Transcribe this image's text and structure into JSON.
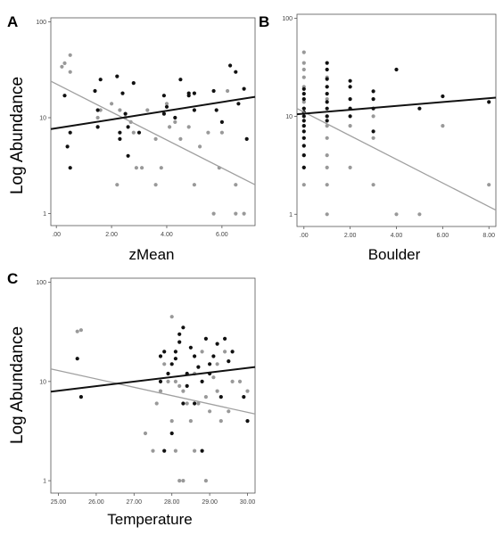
{
  "figure": {
    "shared_ylabel": "Log Abundance"
  },
  "chart_data": [
    {
      "type": "scatter",
      "panel": "A",
      "xlabel": "zMean",
      "ylabel": "Log Abundance",
      "yscale": "log",
      "xlim": [
        -0.2,
        7.2
      ],
      "ylim": [
        0.75,
        110
      ],
      "x_ticks": [
        0,
        2,
        4,
        6
      ],
      "x_tick_labels": [
        ".00",
        "2.00",
        "4.00",
        "6.00"
      ],
      "y_ticks": [
        1,
        10,
        100
      ],
      "y_tick_labels": [
        "1",
        "10",
        "100"
      ],
      "grid": false,
      "legend": "none",
      "colors": {
        "black_series": "#111111",
        "gray_series": "#999999"
      },
      "series": [
        {
          "color": "black",
          "points": [
            [
              0.3,
              17
            ],
            [
              0.4,
              5
            ],
            [
              0.5,
              3
            ],
            [
              0.5,
              7
            ],
            [
              1.4,
              19
            ],
            [
              1.5,
              12
            ],
            [
              1.6,
              25
            ],
            [
              1.5,
              8
            ],
            [
              2.2,
              27
            ],
            [
              2.3,
              7
            ],
            [
              2.3,
              6
            ],
            [
              2.4,
              18
            ],
            [
              2.5,
              11
            ],
            [
              2.6,
              4
            ],
            [
              2.6,
              8
            ],
            [
              2.8,
              23
            ],
            [
              3.0,
              7
            ],
            [
              3.9,
              17
            ],
            [
              3.9,
              11
            ],
            [
              4.0,
              13
            ],
            [
              4.3,
              10
            ],
            [
              4.5,
              25
            ],
            [
              4.8,
              18
            ],
            [
              4.8,
              17
            ],
            [
              5.0,
              18
            ],
            [
              5.0,
              12
            ],
            [
              5.7,
              19
            ],
            [
              5.8,
              12
            ],
            [
              6.0,
              9
            ],
            [
              6.3,
              35
            ],
            [
              6.5,
              30
            ],
            [
              6.6,
              14
            ],
            [
              6.8,
              20
            ],
            [
              6.9,
              6
            ]
          ],
          "fit": [
            [
              -0.2,
              7.6
            ],
            [
              7.2,
              16.5
            ]
          ]
        },
        {
          "color": "gray",
          "points": [
            [
              0.2,
              34
            ],
            [
              0.3,
              37
            ],
            [
              0.5,
              45
            ],
            [
              0.5,
              30
            ],
            [
              1.5,
              10
            ],
            [
              1.5,
              8
            ],
            [
              1.6,
              12
            ],
            [
              2.0,
              14
            ],
            [
              2.2,
              2
            ],
            [
              2.3,
              12
            ],
            [
              2.5,
              10
            ],
            [
              2.7,
              9
            ],
            [
              2.8,
              7
            ],
            [
              2.9,
              3
            ],
            [
              3.1,
              3
            ],
            [
              3.3,
              12
            ],
            [
              3.6,
              6
            ],
            [
              3.6,
              2
            ],
            [
              3.8,
              3
            ],
            [
              4.0,
              14
            ],
            [
              4.1,
              8
            ],
            [
              4.3,
              9
            ],
            [
              4.5,
              6
            ],
            [
              4.8,
              8
            ],
            [
              5.0,
              2
            ],
            [
              5.2,
              5
            ],
            [
              5.5,
              7
            ],
            [
              5.7,
              1
            ],
            [
              5.9,
              3
            ],
            [
              6.0,
              7
            ],
            [
              6.2,
              19
            ],
            [
              6.5,
              2
            ],
            [
              6.5,
              1
            ],
            [
              6.8,
              1
            ]
          ],
          "fit": [
            [
              -0.2,
              24
            ],
            [
              7.2,
              2.0
            ]
          ]
        }
      ]
    },
    {
      "type": "scatter",
      "panel": "B",
      "xlabel": "Boulder",
      "yscale": "log",
      "xlim": [
        -0.3,
        8.3
      ],
      "ylim": [
        0.75,
        110
      ],
      "x_ticks": [
        0,
        2,
        4,
        6,
        8
      ],
      "x_tick_labels": [
        ".00",
        "2.00",
        "4.00",
        "6.00",
        "8.00"
      ],
      "y_ticks": [
        1,
        10,
        100
      ],
      "y_tick_labels": [
        "1",
        "10",
        "100"
      ],
      "grid": false,
      "legend": "none",
      "series": [
        {
          "color": "black",
          "points": [
            [
              0,
              3
            ],
            [
              0,
              4
            ],
            [
              0,
              5
            ],
            [
              0,
              6
            ],
            [
              0,
              7
            ],
            [
              0,
              8
            ],
            [
              0,
              9
            ],
            [
              0,
              10
            ],
            [
              0,
              11
            ],
            [
              0,
              12
            ],
            [
              0,
              15
            ],
            [
              0,
              17
            ],
            [
              0,
              19
            ],
            [
              1,
              9
            ],
            [
              1,
              10
            ],
            [
              1,
              12
            ],
            [
              1,
              14
            ],
            [
              1,
              17
            ],
            [
              1,
              20
            ],
            [
              1,
              24
            ],
            [
              1,
              30
            ],
            [
              1,
              35
            ],
            [
              2,
              10
            ],
            [
              2,
              12
            ],
            [
              2,
              15
            ],
            [
              2,
              20
            ],
            [
              2,
              23
            ],
            [
              3,
              7
            ],
            [
              3,
              12
            ],
            [
              3,
              15
            ],
            [
              3,
              18
            ],
            [
              4,
              30
            ],
            [
              5,
              12
            ],
            [
              6,
              16
            ],
            [
              8,
              14
            ]
          ],
          "fit": [
            [
              -0.3,
              10.5
            ],
            [
              8.3,
              15.5
            ]
          ]
        },
        {
          "color": "gray",
          "points": [
            [
              0,
              2
            ],
            [
              0,
              3
            ],
            [
              0,
              4
            ],
            [
              0,
              5
            ],
            [
              0,
              6
            ],
            [
              0,
              8
            ],
            [
              0,
              12
            ],
            [
              0,
              14
            ],
            [
              0,
              20
            ],
            [
              0,
              25
            ],
            [
              0,
              30
            ],
            [
              0,
              35
            ],
            [
              0,
              45
            ],
            [
              1,
              1
            ],
            [
              1,
              2
            ],
            [
              1,
              3
            ],
            [
              1,
              4
            ],
            [
              1,
              6
            ],
            [
              1,
              8
            ],
            [
              1,
              10
            ],
            [
              1,
              15
            ],
            [
              1,
              20
            ],
            [
              1,
              25
            ],
            [
              2,
              3
            ],
            [
              2,
              8
            ],
            [
              2,
              12
            ],
            [
              2,
              20
            ],
            [
              3,
              2
            ],
            [
              3,
              6
            ],
            [
              3,
              10
            ],
            [
              4,
              1
            ],
            [
              5,
              1
            ],
            [
              6,
              8
            ],
            [
              8,
              2
            ]
          ],
          "fit": [
            [
              -0.3,
              12
            ],
            [
              8.3,
              1.1
            ]
          ]
        }
      ]
    },
    {
      "type": "scatter",
      "panel": "C",
      "xlabel": "Temperature",
      "ylabel": "Log Abundance",
      "yscale": "log",
      "xlim": [
        24.8,
        30.2
      ],
      "ylim": [
        0.75,
        110
      ],
      "x_ticks": [
        25,
        26,
        27,
        28,
        29,
        30
      ],
      "x_tick_labels": [
        "25.00",
        "26.00",
        "27.00",
        "28.00",
        "29.00",
        "30.00"
      ],
      "y_ticks": [
        1,
        10,
        100
      ],
      "y_tick_labels": [
        "1",
        "10",
        "100"
      ],
      "grid": false,
      "legend": "none",
      "series": [
        {
          "color": "black",
          "points": [
            [
              25.5,
              17
            ],
            [
              25.6,
              7
            ],
            [
              27.7,
              10
            ],
            [
              27.7,
              18
            ],
            [
              27.8,
              20
            ],
            [
              27.8,
              2
            ],
            [
              27.9,
              12
            ],
            [
              28.0,
              15
            ],
            [
              28.0,
              3
            ],
            [
              28.1,
              20
            ],
            [
              28.1,
              17
            ],
            [
              28.2,
              30
            ],
            [
              28.2,
              25
            ],
            [
              28.3,
              35
            ],
            [
              28.3,
              6
            ],
            [
              28.4,
              12
            ],
            [
              28.4,
              9
            ],
            [
              28.5,
              22
            ],
            [
              28.6,
              18
            ],
            [
              28.6,
              6
            ],
            [
              28.7,
              14
            ],
            [
              28.8,
              10
            ],
            [
              28.8,
              2
            ],
            [
              28.9,
              27
            ],
            [
              29.0,
              15
            ],
            [
              29.0,
              12
            ],
            [
              29.1,
              18
            ],
            [
              29.2,
              24
            ],
            [
              29.3,
              7
            ],
            [
              29.4,
              27
            ],
            [
              29.5,
              16
            ],
            [
              29.6,
              20
            ],
            [
              29.9,
              7
            ],
            [
              30.0,
              4
            ]
          ],
          "fit": [
            [
              24.8,
              7.9
            ],
            [
              30.2,
              14
            ]
          ]
        },
        {
          "color": "gray",
          "points": [
            [
              25.5,
              32
            ],
            [
              25.6,
              33
            ],
            [
              27.3,
              3
            ],
            [
              27.5,
              2
            ],
            [
              27.6,
              6
            ],
            [
              27.7,
              8
            ],
            [
              27.8,
              15
            ],
            [
              27.9,
              10
            ],
            [
              28.0,
              45
            ],
            [
              28.0,
              4
            ],
            [
              28.1,
              2
            ],
            [
              28.1,
              10
            ],
            [
              28.2,
              1
            ],
            [
              28.2,
              9
            ],
            [
              28.3,
              1
            ],
            [
              28.3,
              8
            ],
            [
              28.4,
              6
            ],
            [
              28.5,
              4
            ],
            [
              28.6,
              12
            ],
            [
              28.6,
              2
            ],
            [
              28.7,
              6
            ],
            [
              28.8,
              20
            ],
            [
              28.9,
              7
            ],
            [
              28.9,
              1
            ],
            [
              29.0,
              5
            ],
            [
              29.1,
              11
            ],
            [
              29.2,
              15
            ],
            [
              29.2,
              8
            ],
            [
              29.3,
              4
            ],
            [
              29.4,
              20
            ],
            [
              29.5,
              5
            ],
            [
              29.6,
              10
            ],
            [
              29.8,
              10
            ],
            [
              30.0,
              8
            ]
          ],
          "fit": [
            [
              24.8,
              13.4
            ],
            [
              30.2,
              4.7
            ]
          ]
        }
      ]
    }
  ]
}
